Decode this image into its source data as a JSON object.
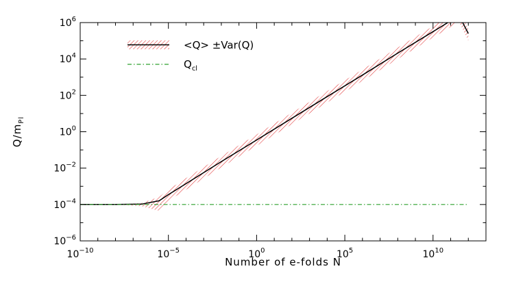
{
  "chart_data": {
    "type": "line",
    "xscale": "log",
    "yscale": "log",
    "xlim": [
      1e-10,
      10000000000000.0
    ],
    "ylim": [
      1e-06,
      1000000.0
    ],
    "xlabel": "Number of e-folds N",
    "ylabel": {
      "main": "Q/m",
      "sub": "Pl"
    },
    "x_ticks": [
      {
        "value": 1e-10,
        "base": "10",
        "exp": "−10"
      },
      {
        "value": 1e-05,
        "base": "10",
        "exp": "−5"
      },
      {
        "value": 1,
        "base": "10",
        "exp": "0"
      },
      {
        "value": 100000.0,
        "base": "10",
        "exp": "5"
      },
      {
        "value": 10000000000.0,
        "base": "10",
        "exp": "10"
      }
    ],
    "y_ticks": [
      {
        "value": 1e-06,
        "base": "10",
        "exp": "−6"
      },
      {
        "value": 0.0001,
        "base": "10",
        "exp": "−4"
      },
      {
        "value": 0.01,
        "base": "10",
        "exp": "−2"
      },
      {
        "value": 1,
        "base": "10",
        "exp": "0"
      },
      {
        "value": 100.0,
        "base": "10",
        "exp": "2"
      },
      {
        "value": 10000.0,
        "base": "10",
        "exp": "4"
      },
      {
        "value": 1000000.0,
        "base": "10",
        "exp": "6"
      }
    ],
    "grid": false,
    "legend_position": "top-left",
    "series": [
      {
        "name": "<Q> ±Var(Q)",
        "style": "black line with red hatched band",
        "color": "#000000",
        "band_color": "#e03030",
        "x": [
          1e-10,
          1e-08,
          3e-07,
          3e-06,
          1e-05,
          0.0001,
          0.01,
          1,
          100.0,
          10000.0,
          1000000.0,
          100000000.0,
          10000000000.0,
          300000000000.0,
          1000000000000.0
        ],
        "y": [
          0.0001,
          0.0001,
          0.000105,
          0.00016,
          0.00035,
          0.0014,
          0.023,
          0.35,
          5.5,
          85,
          1300,
          21000.0,
          320000.0,
          2400000.0,
          250000.0
        ],
        "lower": [
          0.0001,
          0.0001,
          8e-05,
          4.5e-05,
          0.00016,
          0.00065,
          0.011,
          0.17,
          2.6,
          40,
          620,
          10000.0,
          150000.0,
          1100000.0,
          100000.0
        ],
        "upper": [
          0.0001,
          0.0001,
          0.00012,
          0.00026,
          0.00065,
          0.0028,
          0.046,
          0.7,
          11,
          170,
          2600,
          42000.0,
          640000.0,
          4800000.0,
          450000.0
        ]
      },
      {
        "name": "Q",
        "name_sub": "cl",
        "style": "dash-dot",
        "color": "#2ca02c",
        "x": [
          1e-10,
          1000000000000.0
        ],
        "y": [
          0.0001,
          0.0001
        ]
      }
    ]
  }
}
